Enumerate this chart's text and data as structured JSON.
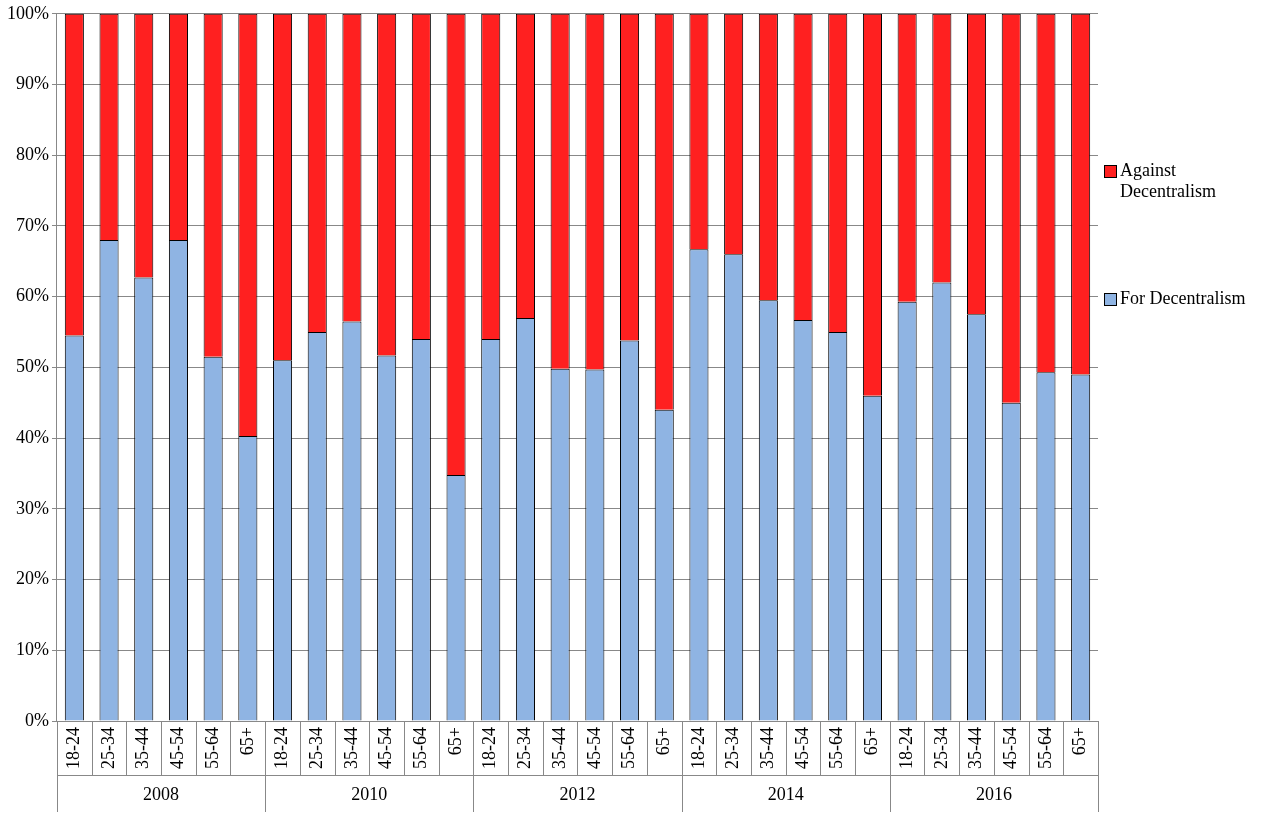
{
  "chart_data": {
    "type": "bar",
    "stacked": true,
    "categories": [
      "18-24",
      "25-34",
      "35-44",
      "45-54",
      "55-64",
      "65+",
      "18-24",
      "25-34",
      "35-44",
      "45-54",
      "55-64",
      "65+",
      "18-24",
      "25-34",
      "35-44",
      "45-54",
      "55-64",
      "65+",
      "18-24",
      "25-34",
      "35-44",
      "45-54",
      "55-64",
      "65+",
      "18-24",
      "25-34",
      "35-44",
      "45-54",
      "55-64",
      "65+"
    ],
    "series": [
      {
        "name": "For Decentralism",
        "color": "#8fb4e3",
        "values": [
          54.5,
          68,
          62.7,
          68,
          51.5,
          40.3,
          51,
          55,
          56.5,
          51.7,
          54,
          34.8,
          54,
          57,
          49.8,
          49.7,
          53.8,
          44,
          66.7,
          66,
          59.5,
          56.7,
          55,
          46,
          59.3,
          62,
          57.5,
          45,
          49.3,
          49
        ]
      },
      {
        "name": "Against Decentralism",
        "color": "#ff2020",
        "values": [
          45.5,
          32,
          37.3,
          32,
          48.5,
          59.7,
          49,
          45,
          43.5,
          48.3,
          46,
          65.2,
          46,
          43,
          50.2,
          50.3,
          46.2,
          56,
          33.3,
          34,
          40.5,
          43.3,
          45,
          54,
          40.7,
          38,
          42.5,
          55,
          50.7,
          51
        ]
      }
    ],
    "ylim": [
      0,
      100
    ],
    "yticks": [
      {
        "value": 0,
        "label": "0%"
      },
      {
        "value": 10,
        "label": "10%"
      },
      {
        "value": 20,
        "label": "20%"
      },
      {
        "value": 30,
        "label": "30%"
      },
      {
        "value": 40,
        "label": "40%"
      },
      {
        "value": 50,
        "label": "50%"
      },
      {
        "value": 60,
        "label": "60%"
      },
      {
        "value": 70,
        "label": "70%"
      },
      {
        "value": 80,
        "label": "80%"
      },
      {
        "value": 90,
        "label": "90%"
      },
      {
        "value": 100,
        "label": "100%"
      }
    ],
    "annotations": [
      "2008",
      "2010",
      "2012",
      "2014",
      "2016"
    ],
    "grid": "y",
    "legend": "right"
  }
}
